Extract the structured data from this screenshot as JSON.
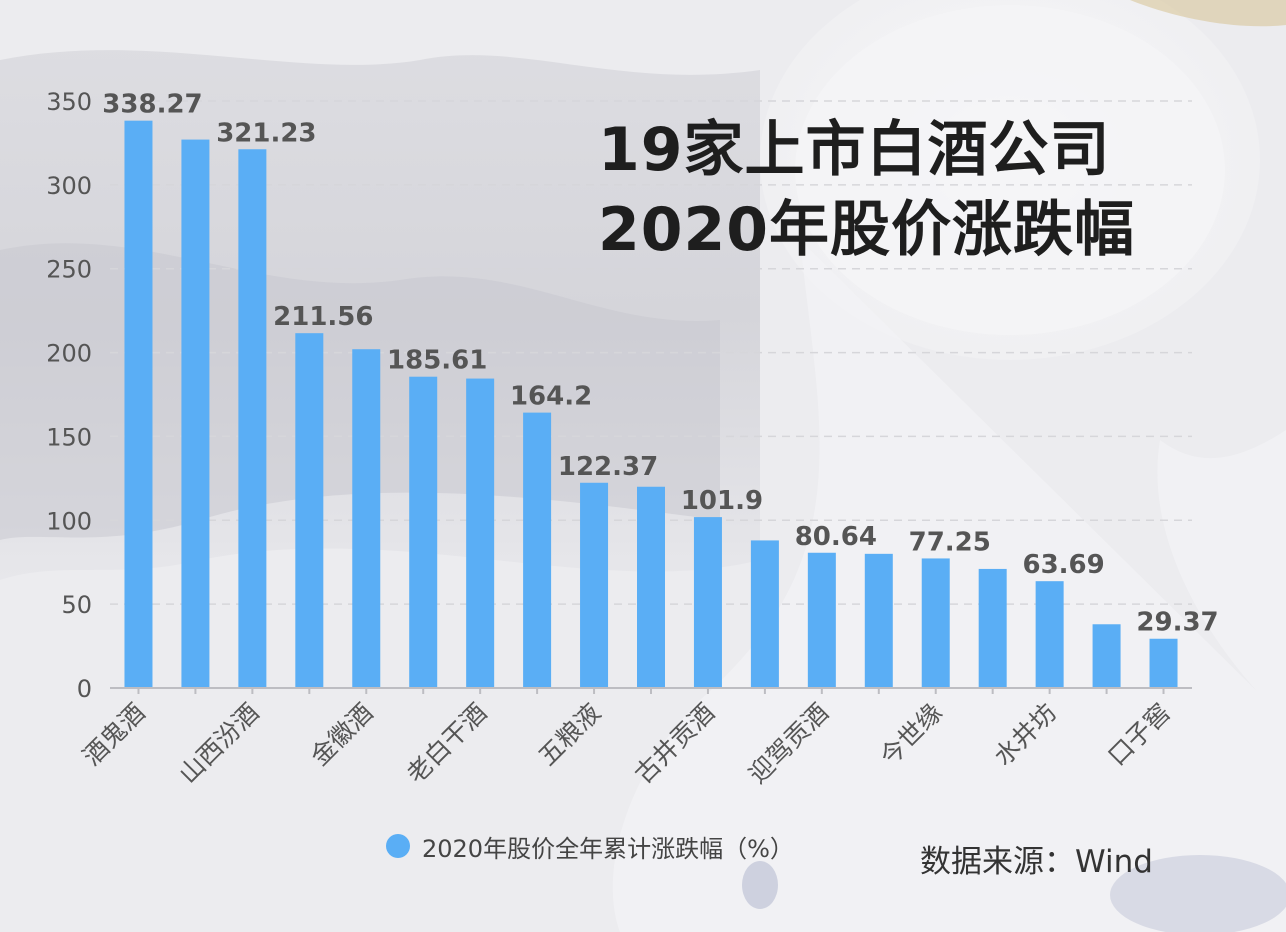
{
  "title_lines": [
    "19家上市白酒公司",
    "2020年股价涨跌幅"
  ],
  "source_text": "数据来源：Wind",
  "colors": {
    "bar": "#5aaef5",
    "label": "#555555",
    "grid": "#d6d6da"
  },
  "chart_data": {
    "type": "bar",
    "categories": [
      "酒鬼酒",
      "",
      "山西汾酒",
      "",
      "金徽酒",
      "",
      "老白干酒",
      "",
      "五粮液",
      "",
      "古井贡酒",
      "",
      "迎驾贡酒",
      "",
      "今世缘",
      "",
      "水井坊",
      "",
      "口子窖"
    ],
    "series": [
      {
        "name": "2020年股价全年累计涨跌幅（%）",
        "values": [
          338.27,
          327,
          321.23,
          211.56,
          202,
          185.61,
          184.5,
          164.2,
          122.37,
          120,
          101.9,
          88,
          80.64,
          80,
          77.25,
          71,
          63.69,
          38,
          29.37
        ],
        "labels": [
          "338.27",
          "",
          "321.23",
          "211.56",
          "",
          "185.61",
          "",
          "164.2",
          "122.37",
          "",
          "101.9",
          "",
          "80.64",
          "",
          "77.25",
          "",
          "63.69",
          "",
          "29.37"
        ]
      }
    ],
    "yticks": [
      0,
      50,
      100,
      150,
      200,
      250,
      300,
      350
    ],
    "ylim": [
      0,
      350
    ],
    "grid": true,
    "legend": "bottom"
  }
}
